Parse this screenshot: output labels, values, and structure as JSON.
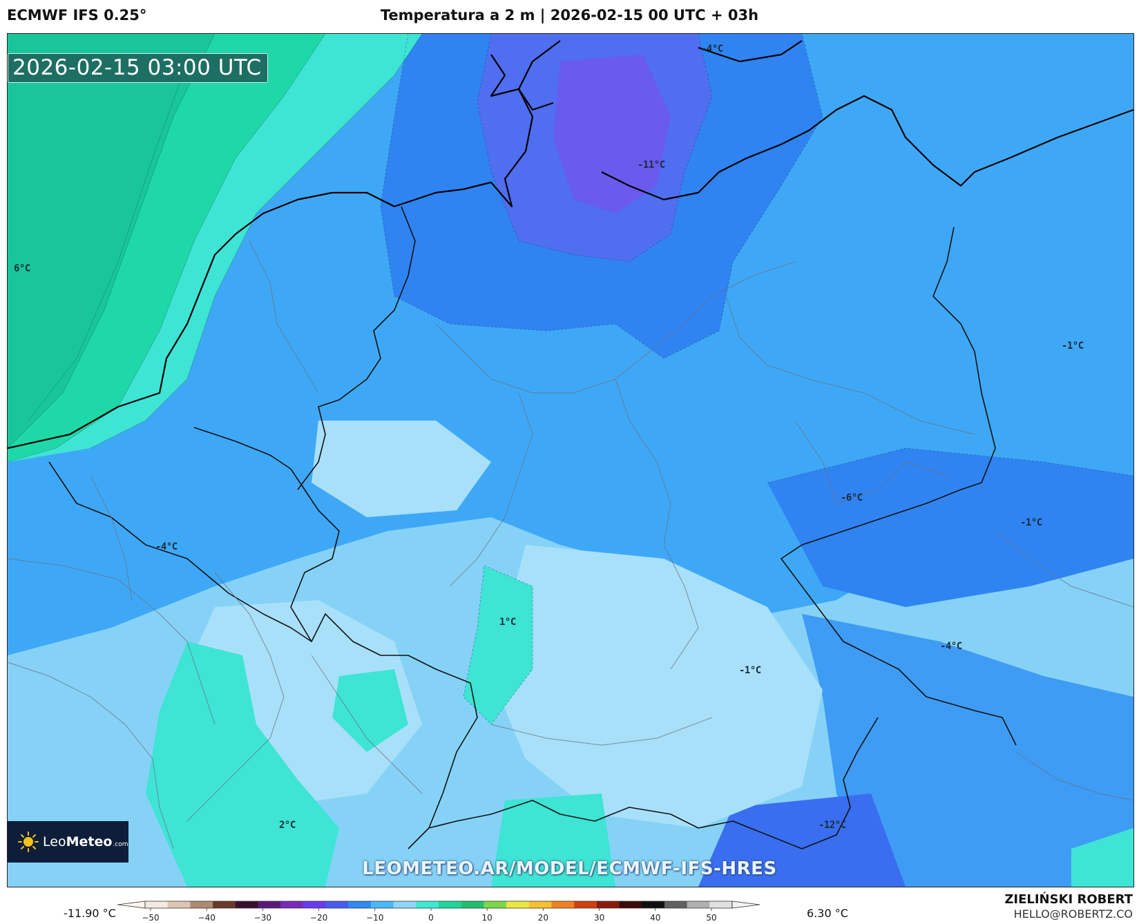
{
  "header": {
    "model": "ECMWF IFS 0.25°",
    "title": "Temperatura a 2 m | 2026-02-15 00 UTC + 03h"
  },
  "map": {
    "timestamp": "2026-02-15 03:00 UTC",
    "labels": [
      {
        "id": "t-north-sea",
        "text": "6°C"
      },
      {
        "id": "t-baltic",
        "text": "-4°C"
      },
      {
        "id": "t-bremen",
        "text": "-11°C"
      },
      {
        "id": "t-poland-east",
        "text": "-1°C"
      },
      {
        "id": "t-sudetes",
        "text": "-6°C"
      },
      {
        "id": "t-lesser-poland",
        "text": "-1°C"
      },
      {
        "id": "t-belgium",
        "text": "-4°C"
      },
      {
        "id": "t-rhine",
        "text": "1°C"
      },
      {
        "id": "t-bavaria",
        "text": "-1°C"
      },
      {
        "id": "t-carpathians",
        "text": "-4°C"
      },
      {
        "id": "t-alps-west",
        "text": "2°C"
      },
      {
        "id": "t-alps-east",
        "text": "-12°C"
      }
    ],
    "watermark": "LEOMETEO.AR/MODEL/ECMWF-IFS-HRES"
  },
  "logo": {
    "brand_light": "Leo",
    "brand_bold": "Meteo",
    "tld": ".com"
  },
  "legend": {
    "min_value": "-11.90 °C",
    "max_value": "6.30 °C",
    "ticks": [
      "−50",
      "−40",
      "−30",
      "−20",
      "−10",
      "0",
      "10",
      "20",
      "30",
      "40",
      "50"
    ],
    "colors": [
      "#f4eadf",
      "#dcc6b2",
      "#b08a70",
      "#6a3a2a",
      "#3a1030",
      "#5a1a7a",
      "#7a2ab8",
      "#6a3af0",
      "#4a5af2",
      "#2f8af5",
      "#4ab8f8",
      "#8fd6f8",
      "#3fe8d4",
      "#1fd79c",
      "#20c070",
      "#7ad84a",
      "#e8e840",
      "#f8c030",
      "#f08020",
      "#d04010",
      "#8a1a0a",
      "#3a0a0a",
      "#101010",
      "#606060",
      "#b0b0b0",
      "#e0e0e0"
    ]
  },
  "author": {
    "name": "ZIELIŃSKI ROBERT",
    "email": "HELLO@ROBERTZ.CO"
  }
}
